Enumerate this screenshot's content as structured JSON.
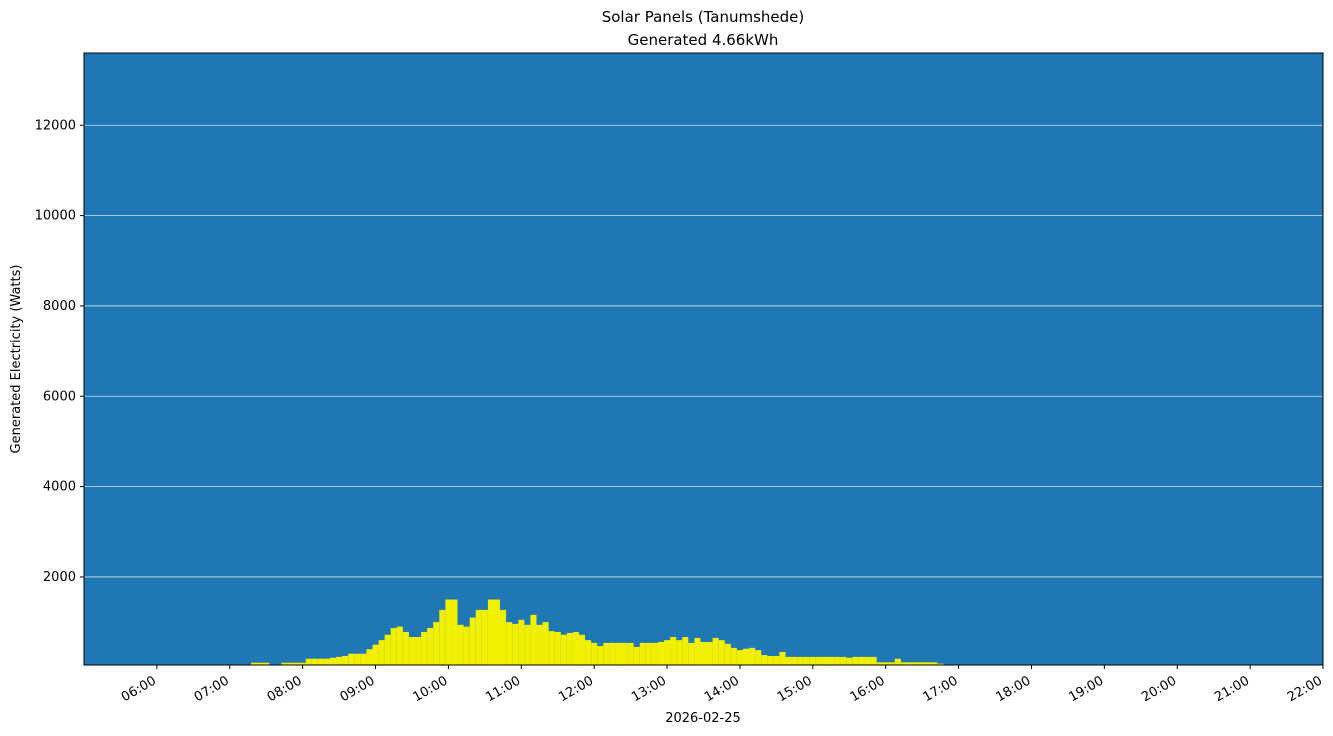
{
  "chart_data": {
    "type": "bar",
    "title": "Solar Panels (Tanumshede)",
    "subtitle": "Generated 4.66kWh",
    "xlabel": "2026-02-25",
    "ylabel": "Generated Electricity (Watts)",
    "x": [
      "07:20",
      "07:25",
      "07:30",
      "07:35",
      "07:40",
      "07:45",
      "07:50",
      "07:55",
      "08:00",
      "08:05",
      "08:10",
      "08:15",
      "08:20",
      "08:25",
      "08:30",
      "08:35",
      "08:40",
      "08:45",
      "08:50",
      "08:55",
      "09:00",
      "09:05",
      "09:10",
      "09:15",
      "09:20",
      "09:25",
      "09:30",
      "09:35",
      "09:40",
      "09:45",
      "09:50",
      "09:55",
      "10:00",
      "10:05",
      "10:10",
      "10:15",
      "10:20",
      "10:25",
      "10:30",
      "10:35",
      "10:40",
      "10:45",
      "10:50",
      "10:55",
      "11:00",
      "11:05",
      "11:10",
      "11:15",
      "11:20",
      "11:25",
      "11:30",
      "11:35",
      "11:40",
      "11:45",
      "11:50",
      "11:55",
      "12:00",
      "12:05",
      "12:10",
      "12:15",
      "12:20",
      "12:25",
      "12:30",
      "12:35",
      "12:40",
      "12:45",
      "12:50",
      "12:55",
      "13:00",
      "13:05",
      "13:10",
      "13:15",
      "13:20",
      "13:25",
      "13:30",
      "13:35",
      "13:40",
      "13:45",
      "13:50",
      "13:55",
      "14:00",
      "14:05",
      "14:10",
      "14:15",
      "14:20",
      "14:25",
      "14:30",
      "14:35",
      "14:40",
      "14:45",
      "14:50",
      "14:55",
      "15:00",
      "15:05",
      "15:10",
      "15:15",
      "15:20",
      "15:25",
      "15:30",
      "15:35",
      "15:40",
      "15:45",
      "15:50",
      "15:55",
      "16:00",
      "16:05",
      "16:10",
      "16:15",
      "16:20",
      "16:25",
      "16:30",
      "16:35",
      "16:40",
      "16:45"
    ],
    "values": [
      100,
      100,
      100,
      null,
      null,
      100,
      100,
      100,
      100,
      190,
      190,
      190,
      190,
      210,
      230,
      250,
      300,
      300,
      300,
      400,
      500,
      600,
      720,
      870,
      900,
      780,
      670,
      670,
      780,
      870,
      1000,
      1270,
      1500,
      1500,
      940,
      900,
      1100,
      1270,
      1270,
      1500,
      1500,
      1270,
      1000,
      960,
      1050,
      940,
      1160,
      940,
      1000,
      800,
      780,
      720,
      760,
      780,
      720,
      600,
      540,
      470,
      540,
      540,
      540,
      540,
      540,
      450,
      540,
      540,
      540,
      560,
      600,
      670,
      600,
      670,
      540,
      650,
      560,
      560,
      650,
      600,
      520,
      430,
      380,
      410,
      430,
      380,
      270,
      250,
      250,
      340,
      230,
      230,
      230,
      230,
      230,
      230,
      230,
      230,
      230,
      230,
      210,
      230,
      230,
      230,
      230,
      110,
      110,
      110,
      190,
      110,
      110,
      110,
      110,
      110,
      110,
      80
    ],
    "color": "#f0f000",
    "background": "#1f77b4",
    "xlim": [
      "05:00",
      "22:00"
    ],
    "xticks": [
      "06:00",
      "07:00",
      "08:00",
      "09:00",
      "10:00",
      "11:00",
      "12:00",
      "13:00",
      "14:00",
      "15:00",
      "16:00",
      "17:00",
      "18:00",
      "19:00",
      "20:00",
      "21:00",
      "22:00"
    ],
    "ylim": [
      50,
      13600
    ],
    "yticks": [
      2000,
      4000,
      6000,
      8000,
      10000,
      12000
    ],
    "grid": true
  }
}
